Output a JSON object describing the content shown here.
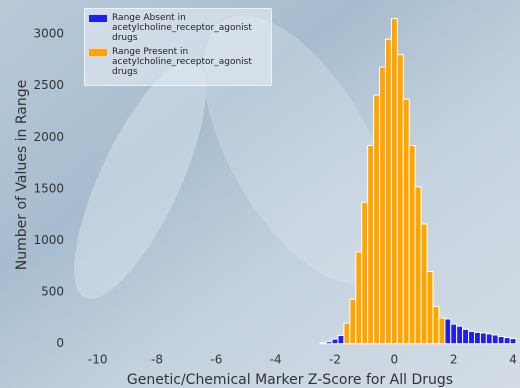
{
  "chart_data": {
    "type": "histogram",
    "xlabel": "Genetic/Chemical Marker Z-Score for All Drugs",
    "ylabel": "Number of Values in Range",
    "bins": [
      -2.5,
      -2.3,
      -2.1,
      -1.9,
      -1.7,
      -1.5,
      -1.3,
      -1.1,
      -0.9,
      -0.7,
      -0.5,
      -0.3,
      -0.1,
      0.1,
      0.3,
      0.5,
      0.7,
      0.9,
      1.1,
      1.3,
      1.5,
      1.7,
      1.9,
      2.1,
      2.3,
      2.5,
      2.7,
      2.9,
      3.1,
      3.3,
      3.5,
      3.7,
      3.9,
      4.1
    ],
    "series": [
      {
        "name": "Range Absent in\nacetylcholine_receptor_agonist\ndrugs",
        "color": "#1f1ff5",
        "values": [
          10,
          20,
          45,
          80,
          0,
          0,
          0,
          0,
          0,
          0,
          0,
          0,
          0,
          0,
          0,
          0,
          0,
          0,
          0,
          0,
          0,
          240,
          190,
          170,
          140,
          120,
          110,
          105,
          95,
          85,
          70,
          60,
          50
        ]
      },
      {
        "name": "Range Present in\nacetylcholine_receptor_agonist\ndrugs",
        "color": "#ffa500",
        "values": [
          0,
          0,
          0,
          0,
          200,
          430,
          890,
          1370,
          1920,
          2410,
          2680,
          2950,
          3150,
          2800,
          2370,
          1920,
          1520,
          1160,
          700,
          360,
          250,
          0,
          0,
          0,
          0,
          0,
          0,
          0,
          0,
          0,
          0,
          0,
          0
        ]
      }
    ],
    "xlim": [
      -11,
      4.2
    ],
    "xticks": [
      -10,
      -8,
      -6,
      -4,
      -2,
      0,
      2,
      4
    ],
    "ylim": [
      -80,
      3330
    ],
    "yticks": [
      0,
      500,
      1000,
      1500,
      2000,
      2500,
      3000
    ],
    "legend": "upper left"
  }
}
